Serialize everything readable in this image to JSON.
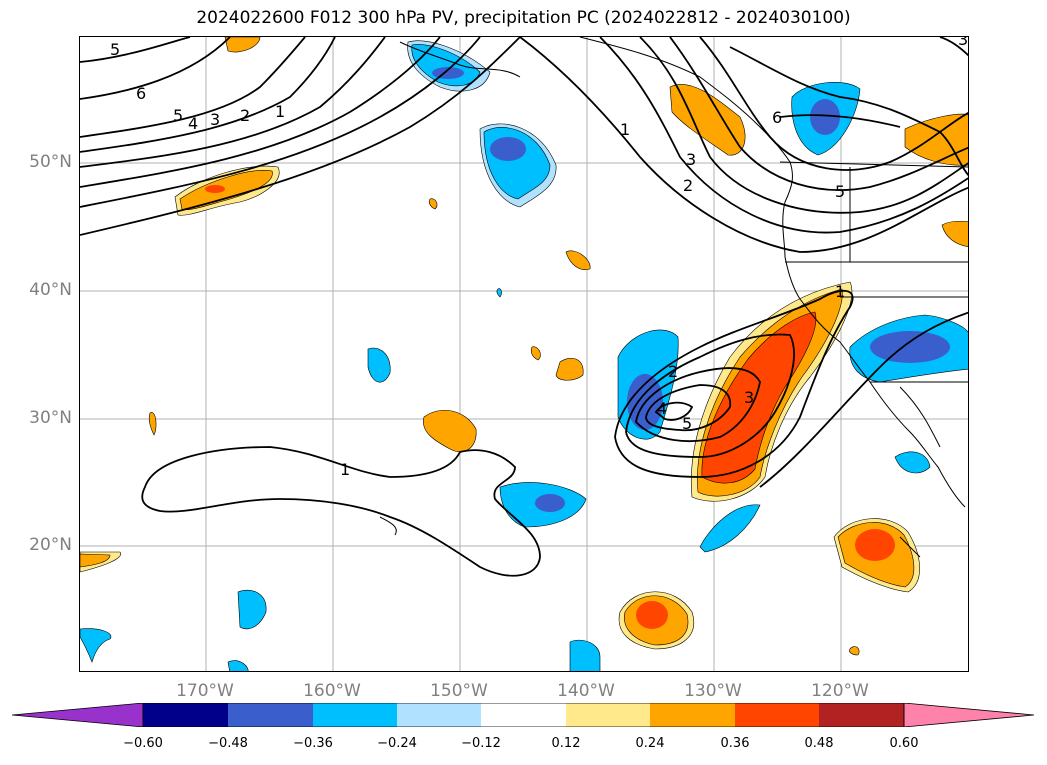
{
  "title": "2024022600 F012 300 hPa PV, precipitation PC (2024022812 - 2024030100)",
  "map": {
    "lat_labels": [
      "50°N",
      "40°N",
      "30°N",
      "20°N"
    ],
    "lon_labels": [
      "170°W",
      "160°W",
      "150°W",
      "140°W",
      "130°W",
      "120°W"
    ],
    "contour_labels": [
      "5",
      "6",
      "5",
      "4",
      "3",
      "2",
      "1",
      "1",
      "3",
      "2",
      "6",
      "5",
      "1",
      "2",
      "3",
      "4",
      "5",
      "3",
      "1"
    ],
    "colors": {
      "neg_060": "#9932cc",
      "neg_048": "#00008b",
      "neg_036": "#3a5fcd",
      "neg_024": "#00bfff",
      "neg_012": "#b0e2ff",
      "zero": "#ffffff",
      "pos_012": "#ffe98a",
      "pos_024": "#ffa500",
      "pos_036": "#ff4500",
      "pos_048": "#b22222",
      "pos_060": "#ff82ab"
    }
  },
  "colorbar": {
    "ticks": [
      "−0.60",
      "−0.48",
      "−0.36",
      "−0.24",
      "−0.12",
      "0.12",
      "0.24",
      "0.36",
      "0.48",
      "0.60"
    ]
  }
}
